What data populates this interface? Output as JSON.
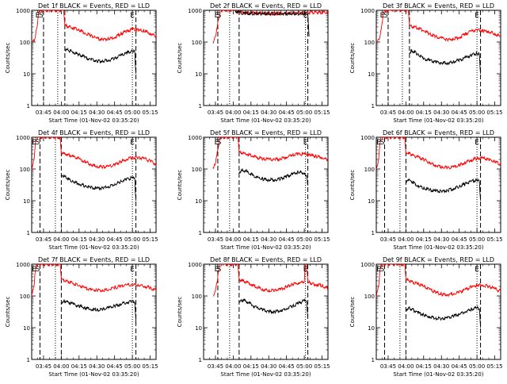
{
  "chart_data": {
    "type": "line",
    "layout": "3x3 grid",
    "yscale": "log",
    "ylim": [
      1,
      1000
    ],
    "ylabel": "Counts/sec",
    "yticks": [
      "1",
      "10",
      "100",
      "1000"
    ],
    "xlim": [
      "03:35",
      "05:20"
    ],
    "xticks": [
      "03:45",
      "04:00",
      "04:15",
      "04:30",
      "04:45",
      "05:00",
      "05:15"
    ],
    "xlabel": "Start Time (01-Nov-02 03:35:20)",
    "series_colors": {
      "events": "#000000",
      "lld": "#ff0000"
    },
    "panels": [
      {
        "title": "Det 1f BLACK = Events, RED = LLD",
        "markers": {
          "E": "03:40",
          "S": "03:43",
          "E2": "05:00"
        },
        "vlines": {
          "dashed": [
            "03:45",
            "04:03",
            "05:03"
          ],
          "dotted": [
            "03:57",
            "05:00"
          ]
        },
        "events": {
          "t": [
            "04:03",
            "04:06",
            "04:10",
            "04:15",
            "04:20",
            "04:25",
            "04:30",
            "04:35",
            "04:40",
            "04:45",
            "04:50",
            "04:55",
            "05:00",
            "05:02",
            "05:03"
          ],
          "v": [
            60,
            55,
            48,
            40,
            33,
            28,
            25,
            25,
            27,
            30,
            38,
            45,
            52,
            50,
            10
          ]
        },
        "lld": {
          "t": [
            "03:36",
            "03:38",
            "03:40",
            "03:41",
            "03:42",
            "03:43",
            "04:02",
            "04:03",
            "04:06",
            "04:10",
            "04:15",
            "04:20",
            "04:25",
            "04:30",
            "04:35",
            "04:40",
            "04:45",
            "04:50",
            "04:55",
            "05:00",
            "05:05",
            "05:10",
            "05:15",
            "05:20"
          ],
          "v": [
            100,
            140,
            400,
            900,
            1000,
            1000,
            1000,
            330,
            300,
            280,
            240,
            190,
            160,
            130,
            120,
            125,
            140,
            180,
            220,
            250,
            240,
            220,
            190,
            150
          ]
        }
      },
      {
        "title": "Det 2f BLACK = Events, RED = LLD",
        "markers": {
          "E": "03:46",
          "S": "03:48",
          "E2": "05:01"
        },
        "vlines": {
          "dashed": [
            "03:47",
            "04:05",
            "05:03"
          ],
          "dotted": [
            "03:57",
            "05:01"
          ]
        },
        "events": {
          "t": [
            "04:01",
            "04:05",
            "04:10",
            "04:20",
            "04:30",
            "04:40",
            "04:50",
            "05:00",
            "05:03",
            "05:04"
          ],
          "v": [
            1000,
            850,
            800,
            780,
            780,
            780,
            780,
            790,
            780,
            150
          ]
        },
        "lld": {
          "t": [
            "03:43",
            "03:45",
            "03:47",
            "03:49",
            "03:51",
            "04:00",
            "04:05",
            "04:10",
            "04:20",
            "04:30",
            "04:40",
            "04:50",
            "05:00",
            "05:10",
            "05:20"
          ],
          "v": [
            100,
            150,
            400,
            1000,
            1000,
            1000,
            880,
            850,
            820,
            800,
            800,
            810,
            830,
            860,
            860
          ]
        }
      },
      {
        "title": "Det 3f BLACK = Events, RED = LLD",
        "markers": {
          "E": "03:40",
          "S": "03:43",
          "E2": "05:00"
        },
        "vlines": {
          "dashed": [
            "03:45",
            "04:03",
            "05:03"
          ],
          "dotted": [
            "03:57",
            "05:00"
          ]
        },
        "events": {
          "t": [
            "04:03",
            "04:05",
            "04:10",
            "04:15",
            "04:20",
            "04:25",
            "04:30",
            "04:35",
            "04:40",
            "04:45",
            "04:50",
            "04:55",
            "05:00",
            "05:02",
            "05:03"
          ],
          "v": [
            45,
            55,
            42,
            30,
            26,
            24,
            22,
            22,
            24,
            27,
            32,
            38,
            45,
            42,
            10
          ]
        },
        "lld": {
          "t": [
            "03:36",
            "03:38",
            "03:40",
            "03:41",
            "03:42",
            "03:43",
            "04:02",
            "04:03",
            "04:06",
            "04:10",
            "04:15",
            "04:20",
            "04:25",
            "04:30",
            "04:35",
            "04:40",
            "04:45",
            "04:50",
            "04:55",
            "05:00",
            "05:05",
            "05:10",
            "05:15",
            "05:20"
          ],
          "v": [
            100,
            140,
            400,
            900,
            1000,
            1000,
            1000,
            330,
            300,
            280,
            230,
            180,
            150,
            130,
            120,
            125,
            140,
            180,
            220,
            240,
            230,
            210,
            180,
            150
          ]
        }
      },
      {
        "title": "Det 4f BLACK = Events, RED = LLD",
        "markers": {
          "E": "03:37",
          "S": "03:40",
          "E2": "05:00"
        },
        "vlines": {
          "dashed": [
            "03:42",
            "04:00",
            "05:03"
          ],
          "dotted": [
            "03:55",
            "05:00"
          ]
        },
        "events": {
          "t": [
            "04:00",
            "04:02",
            "04:05",
            "04:10",
            "04:15",
            "04:20",
            "04:25",
            "04:30",
            "04:35",
            "04:40",
            "04:45",
            "04:50",
            "04:55",
            "05:00",
            "05:02",
            "05:03"
          ],
          "v": [
            55,
            60,
            50,
            40,
            34,
            29,
            26,
            24,
            25,
            28,
            32,
            40,
            48,
            52,
            50,
            10
          ]
        },
        "lld": {
          "t": [
            "03:35",
            "03:37",
            "03:38",
            "03:39",
            "03:40",
            "03:59",
            "04:00",
            "04:03",
            "04:06",
            "04:10",
            "04:15",
            "04:20",
            "04:25",
            "04:30",
            "04:35",
            "04:40",
            "04:45",
            "04:50",
            "04:55",
            "05:00",
            "05:05",
            "05:10",
            "05:15",
            "05:20"
          ],
          "v": [
            100,
            200,
            600,
            1000,
            1000,
            1000,
            330,
            300,
            280,
            250,
            210,
            170,
            140,
            120,
            115,
            120,
            135,
            170,
            200,
            230,
            230,
            210,
            180,
            140
          ]
        }
      },
      {
        "title": "Det 5f BLACK = Events, RED = LLD",
        "markers": {
          "E": "03:46",
          "S": "03:48",
          "E2": "05:01"
        },
        "vlines": {
          "dashed": [
            "03:47",
            "04:05",
            "05:03"
          ],
          "dotted": [
            "03:57",
            "05:01"
          ]
        },
        "events": {
          "t": [
            "04:05",
            "04:08",
            "04:12",
            "04:16",
            "04:20",
            "04:25",
            "04:30",
            "04:35",
            "04:40",
            "04:45",
            "04:50",
            "04:55",
            "05:00",
            "05:02",
            "05:03"
          ],
          "v": [
            80,
            90,
            80,
            65,
            55,
            48,
            45,
            45,
            50,
            58,
            70,
            80,
            75,
            60,
            30
          ]
        },
        "lld": {
          "t": [
            "03:43",
            "03:45",
            "03:47",
            "03:49",
            "03:51",
            "04:04",
            "04:05",
            "04:08",
            "04:12",
            "04:16",
            "04:20",
            "04:25",
            "04:30",
            "04:35",
            "04:40",
            "04:45",
            "04:50",
            "04:55",
            "05:00",
            "05:05",
            "05:10",
            "05:15",
            "05:20"
          ],
          "v": [
            100,
            150,
            400,
            1000,
            1000,
            1000,
            330,
            320,
            290,
            260,
            230,
            210,
            200,
            200,
            210,
            240,
            280,
            300,
            290,
            270,
            250,
            230,
            190
          ]
        }
      },
      {
        "title": "Det 6f BLACK = Events, RED = LLD",
        "markers": {
          "E": "03:37",
          "S": "03:40",
          "E2": "05:00"
        },
        "vlines": {
          "dashed": [
            "03:42",
            "04:00",
            "05:03"
          ],
          "dotted": [
            "03:55",
            "05:00"
          ]
        },
        "events": {
          "t": [
            "04:00",
            "04:02",
            "04:05",
            "04:10",
            "04:15",
            "04:20",
            "04:25",
            "04:30",
            "04:35",
            "04:40",
            "04:45",
            "04:50",
            "04:55",
            "05:00",
            "05:02",
            "05:03"
          ],
          "v": [
            35,
            45,
            40,
            30,
            25,
            22,
            20,
            20,
            21,
            24,
            28,
            34,
            40,
            45,
            42,
            10
          ]
        },
        "lld": {
          "t": [
            "03:35",
            "03:37",
            "03:38",
            "03:39",
            "03:40",
            "03:59",
            "04:00",
            "04:03",
            "04:06",
            "04:10",
            "04:15",
            "04:20",
            "04:25",
            "04:30",
            "04:35",
            "04:40",
            "04:45",
            "04:50",
            "04:55",
            "05:00",
            "05:05",
            "05:10",
            "05:15",
            "05:20"
          ],
          "v": [
            100,
            200,
            600,
            1000,
            1000,
            1000,
            330,
            300,
            270,
            240,
            200,
            160,
            130,
            115,
            110,
            115,
            130,
            160,
            190,
            220,
            220,
            200,
            170,
            140
          ]
        }
      },
      {
        "title": "Det 7f BLACK = Events, RED = LLD",
        "markers": {
          "E": "03:37",
          "S": "03:40",
          "E2": "05:00"
        },
        "vlines": {
          "dashed": [
            "03:42",
            "04:00",
            "05:03"
          ],
          "dotted": [
            "03:55",
            "05:00"
          ]
        },
        "events": {
          "t": [
            "04:00",
            "04:02",
            "04:05",
            "04:10",
            "04:15",
            "04:20",
            "04:25",
            "04:30",
            "04:35",
            "04:40",
            "04:45",
            "04:50",
            "04:55",
            "05:00",
            "05:02",
            "05:03"
          ],
          "v": [
            60,
            70,
            65,
            55,
            48,
            42,
            38,
            36,
            38,
            42,
            48,
            55,
            62,
            68,
            65,
            15
          ]
        },
        "lld": {
          "t": [
            "03:35",
            "03:37",
            "03:38",
            "03:39",
            "03:40",
            "03:59",
            "04:00",
            "04:03",
            "04:06",
            "04:10",
            "04:15",
            "04:20",
            "04:25",
            "04:30",
            "04:35",
            "04:40",
            "04:45",
            "04:50",
            "04:55",
            "05:00",
            "05:05",
            "05:10",
            "05:15",
            "05:20"
          ],
          "v": [
            100,
            200,
            600,
            1000,
            1000,
            1000,
            330,
            300,
            280,
            250,
            210,
            180,
            160,
            150,
            150,
            160,
            180,
            200,
            220,
            230,
            220,
            200,
            180,
            150
          ]
        }
      },
      {
        "title": "Det 8f BLACK = Events, RED = LLD",
        "markers": {
          "E": "03:46",
          "S": "03:48",
          "E2": "05:01"
        },
        "vlines": {
          "dashed": [
            "03:47",
            "04:05",
            "05:03"
          ],
          "dotted": [
            "03:57",
            "05:01"
          ]
        },
        "events": {
          "t": [
            "04:05",
            "04:08",
            "04:12",
            "04:16",
            "04:20",
            "04:25",
            "04:30",
            "04:35",
            "04:40",
            "04:45",
            "04:50",
            "04:55",
            "05:00",
            "05:02",
            "05:03"
          ],
          "v": [
            60,
            75,
            65,
            52,
            42,
            36,
            32,
            32,
            35,
            40,
            48,
            58,
            72,
            65,
            20
          ]
        },
        "lld": {
          "t": [
            "03:43",
            "03:45",
            "03:47",
            "03:49",
            "03:51",
            "04:04",
            "04:05",
            "04:08",
            "04:12",
            "04:16",
            "04:20",
            "04:25",
            "04:30",
            "04:35",
            "04:40",
            "04:45",
            "04:50",
            "04:55",
            "05:00",
            "05:01",
            "05:02",
            "05:03",
            "05:05",
            "05:10",
            "05:15",
            "05:20"
          ],
          "v": [
            100,
            150,
            400,
            1000,
            1000,
            1000,
            330,
            300,
            260,
            220,
            190,
            160,
            150,
            150,
            160,
            190,
            230,
            260,
            280,
            1000,
            1000,
            280,
            250,
            230,
            210,
            170
          ]
        }
      },
      {
        "title": "Det 9f BLACK = Events, RED = LLD",
        "markers": {
          "E": "03:37",
          "S": "03:40",
          "E2": "05:00"
        },
        "vlines": {
          "dashed": [
            "03:42",
            "04:00",
            "05:03"
          ],
          "dotted": [
            "03:55",
            "05:00"
          ]
        },
        "events": {
          "t": [
            "04:00",
            "04:02",
            "04:05",
            "04:10",
            "04:15",
            "04:20",
            "04:25",
            "04:30",
            "04:35",
            "04:40",
            "04:45",
            "04:50",
            "04:55",
            "05:00",
            "05:02",
            "05:03"
          ],
          "v": [
            35,
            42,
            38,
            30,
            25,
            22,
            20,
            19,
            20,
            23,
            27,
            32,
            38,
            42,
            40,
            10
          ]
        },
        "lld": {
          "t": [
            "03:35",
            "03:37",
            "03:38",
            "03:39",
            "03:40",
            "03:59",
            "04:00",
            "04:03",
            "04:06",
            "04:10",
            "04:15",
            "04:20",
            "04:25",
            "04:30",
            "04:35",
            "04:40",
            "04:45",
            "04:50",
            "04:55",
            "05:00",
            "05:05",
            "05:10",
            "05:15",
            "05:20"
          ],
          "v": [
            100,
            200,
            600,
            1000,
            1000,
            1000,
            330,
            300,
            270,
            240,
            200,
            160,
            130,
            115,
            110,
            115,
            130,
            160,
            190,
            220,
            220,
            200,
            170,
            140
          ]
        }
      }
    ]
  }
}
